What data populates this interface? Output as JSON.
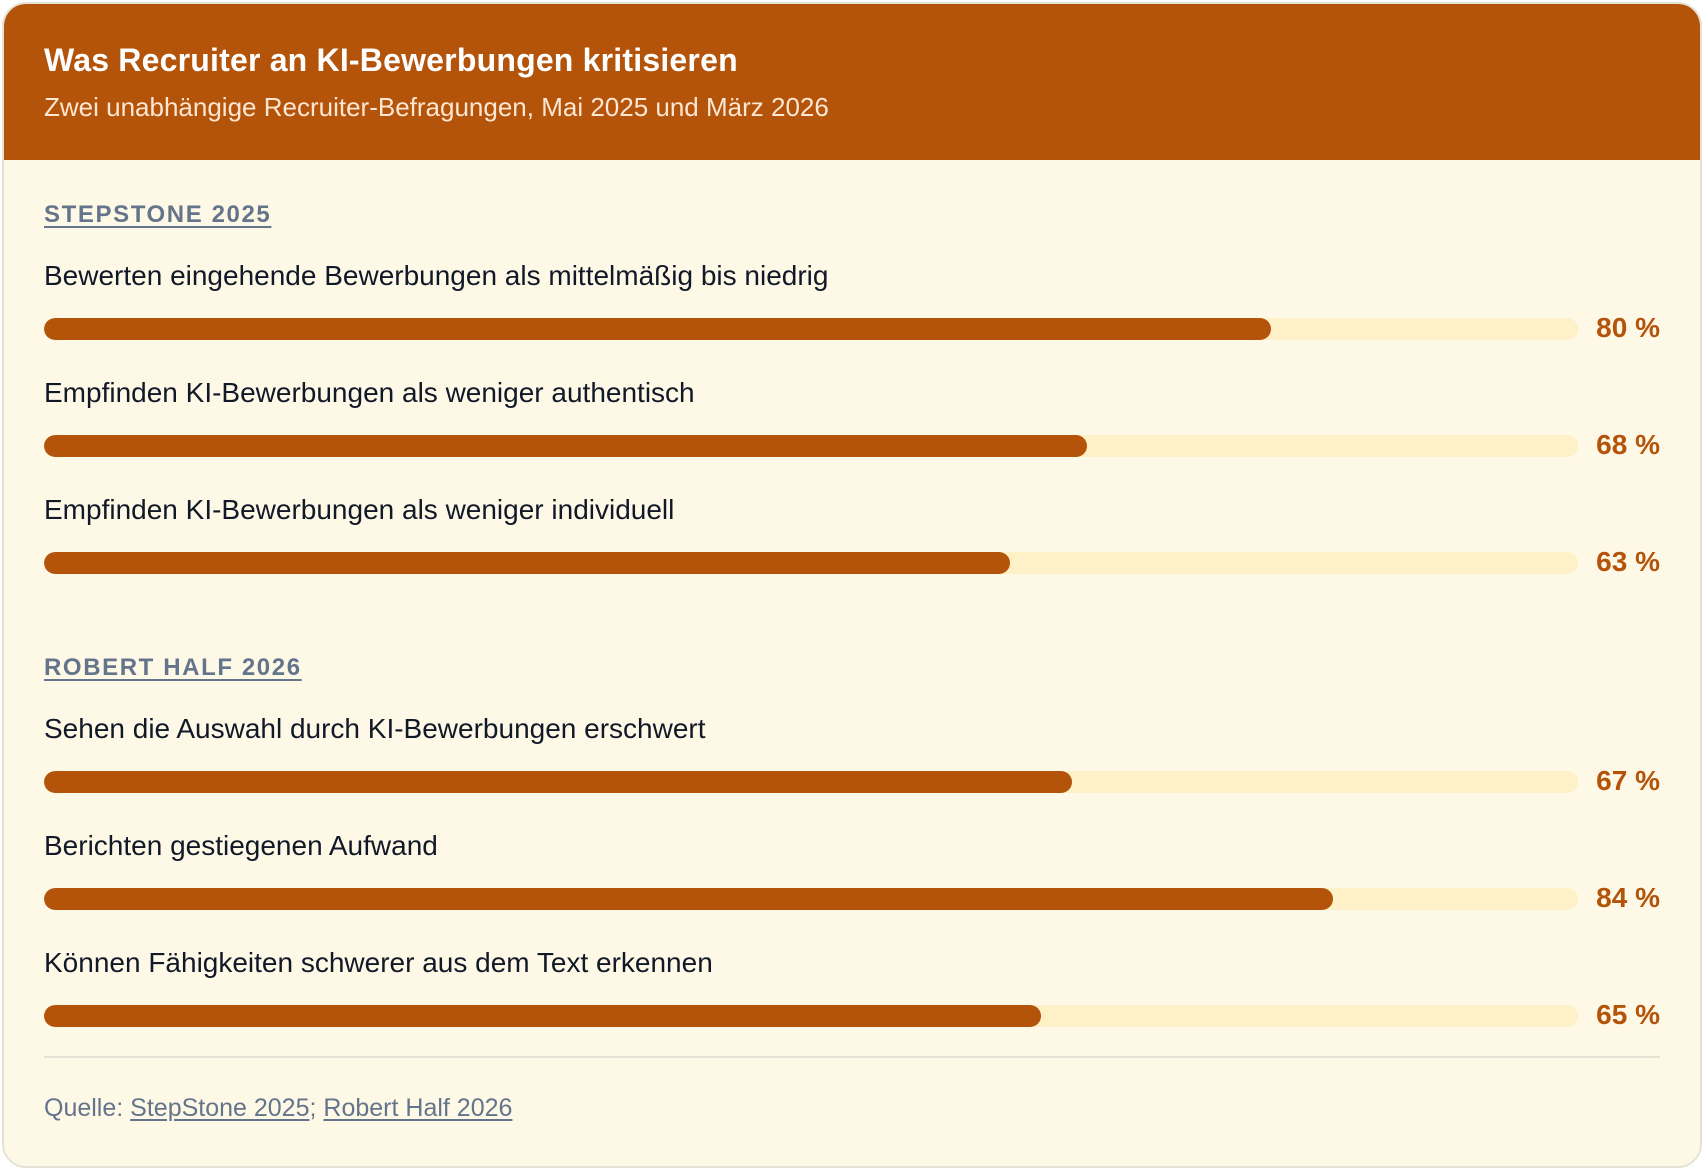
{
  "header": {
    "title": "Was Recruiter an KI-Bewerbungen kritisieren",
    "subtitle": "Zwei unabhängige Recruiter-Befragungen, Mai 2025 und März 2026"
  },
  "colors": {
    "accent": "#b4530a",
    "track": "#fef0c7",
    "background": "#fef9e7",
    "muted": "#64748b"
  },
  "chart_data": {
    "type": "bar",
    "orientation": "horizontal",
    "title": "Was Recruiter an KI-Bewerbungen kritisieren",
    "subtitle": "Zwei unabhängige Recruiter-Befragungen, Mai 2025 und März 2026",
    "xlim": [
      0,
      100
    ],
    "unit": "%",
    "groups": [
      {
        "name": "STEPSTONE 2025",
        "items": [
          {
            "label": "Bewerten eingehende Bewerbungen als mittelmäßig bis niedrig",
            "value": 80,
            "display": "80 %"
          },
          {
            "label": "Empfinden KI-Bewerbungen als weniger authentisch",
            "value": 68,
            "display": "68 %"
          },
          {
            "label": "Empfinden KI-Bewerbungen als weniger individuell",
            "value": 63,
            "display": "63 %"
          }
        ]
      },
      {
        "name": "ROBERT HALF 2026",
        "items": [
          {
            "label": "Sehen die Auswahl durch KI-Bewerbungen erschwert",
            "value": 67,
            "display": "67 %"
          },
          {
            "label": "Berichten gestiegenen Aufwand",
            "value": 84,
            "display": "84 %"
          },
          {
            "label": "Können Fähigkeiten schwerer aus dem Text erkennen",
            "value": 65,
            "display": "65 %"
          }
        ]
      }
    ]
  },
  "footer": {
    "source_prefix": "Quelle: ",
    "separator": ";",
    "sources": [
      "StepStone 2025",
      "Robert Half 2026"
    ]
  }
}
